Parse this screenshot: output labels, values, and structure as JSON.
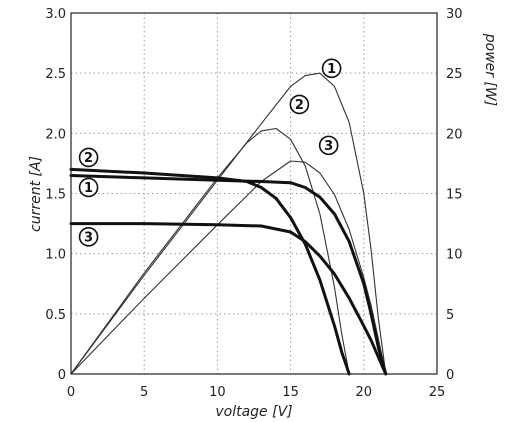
{
  "chart_data": {
    "type": "line",
    "xlabel": "voltage [V]",
    "ylabel_left": "current [A]",
    "ylabel_right": "power [W]",
    "xlim": [
      0,
      25
    ],
    "ylim_left": [
      0,
      3.0
    ],
    "ylim_right": [
      0,
      30
    ],
    "x_ticks": [
      "0",
      "5",
      "10",
      "15",
      "20",
      "25"
    ],
    "y_left_ticks": [
      "0",
      "0.5",
      "1.0",
      "1.5",
      "2.0",
      "2.5",
      "3.0"
    ],
    "y_right_ticks": [
      "0",
      "5",
      "10",
      "15",
      "20",
      "25",
      "30"
    ],
    "grid": true,
    "current_curves": [
      {
        "label": "1",
        "axis": "left",
        "x": [
          0,
          5,
          10,
          13,
          15,
          16,
          17,
          18,
          19,
          20,
          20.5,
          21,
          21.5
        ],
        "y": [
          1.65,
          1.63,
          1.61,
          1.6,
          1.59,
          1.55,
          1.47,
          1.33,
          1.1,
          0.75,
          0.5,
          0.22,
          0
        ]
      },
      {
        "label": "2",
        "axis": "left",
        "x": [
          0,
          5,
          10,
          12,
          13,
          14,
          15,
          16,
          17,
          18,
          18.5,
          19
        ],
        "y": [
          1.7,
          1.67,
          1.63,
          1.6,
          1.55,
          1.46,
          1.3,
          1.08,
          0.78,
          0.4,
          0.18,
          0
        ]
      },
      {
        "label": "3",
        "axis": "left",
        "x": [
          0,
          5,
          10,
          13,
          15,
          16,
          17,
          18,
          19,
          20,
          20.5,
          21,
          21.5
        ],
        "y": [
          1.25,
          1.25,
          1.24,
          1.23,
          1.18,
          1.1,
          0.98,
          0.83,
          0.63,
          0.4,
          0.28,
          0.14,
          0
        ]
      }
    ],
    "power_curves": [
      {
        "label": "1",
        "axis": "right",
        "x": [
          0,
          5,
          10,
          13,
          15,
          16,
          17,
          18,
          19,
          20,
          20.5,
          21,
          21.5
        ],
        "y": [
          0,
          8.2,
          16.1,
          20.8,
          23.9,
          24.8,
          25.0,
          23.9,
          20.9,
          15.0,
          10.3,
          4.6,
          0
        ]
      },
      {
        "label": "2",
        "axis": "right",
        "x": [
          0,
          5,
          10,
          12,
          13,
          14,
          15,
          16,
          17,
          18,
          18.5,
          19
        ],
        "y": [
          0,
          8.4,
          16.3,
          19.2,
          20.2,
          20.4,
          19.5,
          17.3,
          13.3,
          7.2,
          3.3,
          0
        ]
      },
      {
        "label": "3",
        "axis": "right",
        "x": [
          0,
          5,
          10,
          13,
          15,
          16,
          17,
          18,
          19,
          20,
          20.5,
          21,
          21.5
        ],
        "y": [
          0,
          6.3,
          12.4,
          16.0,
          17.7,
          17.6,
          16.7,
          14.9,
          12.0,
          8.0,
          5.7,
          2.9,
          0
        ]
      }
    ],
    "annotations": [
      {
        "label": "2",
        "axis": "left",
        "x": 1.2,
        "y": 1.8
      },
      {
        "label": "1",
        "axis": "left",
        "x": 1.2,
        "y": 1.55
      },
      {
        "label": "3",
        "axis": "left",
        "x": 1.2,
        "y": 1.14
      },
      {
        "label": "1",
        "axis": "right",
        "x": 17.8,
        "y": 25.4
      },
      {
        "label": "2",
        "axis": "right",
        "x": 15.6,
        "y": 22.4
      },
      {
        "label": "3",
        "axis": "right",
        "x": 17.6,
        "y": 19.0
      }
    ]
  }
}
